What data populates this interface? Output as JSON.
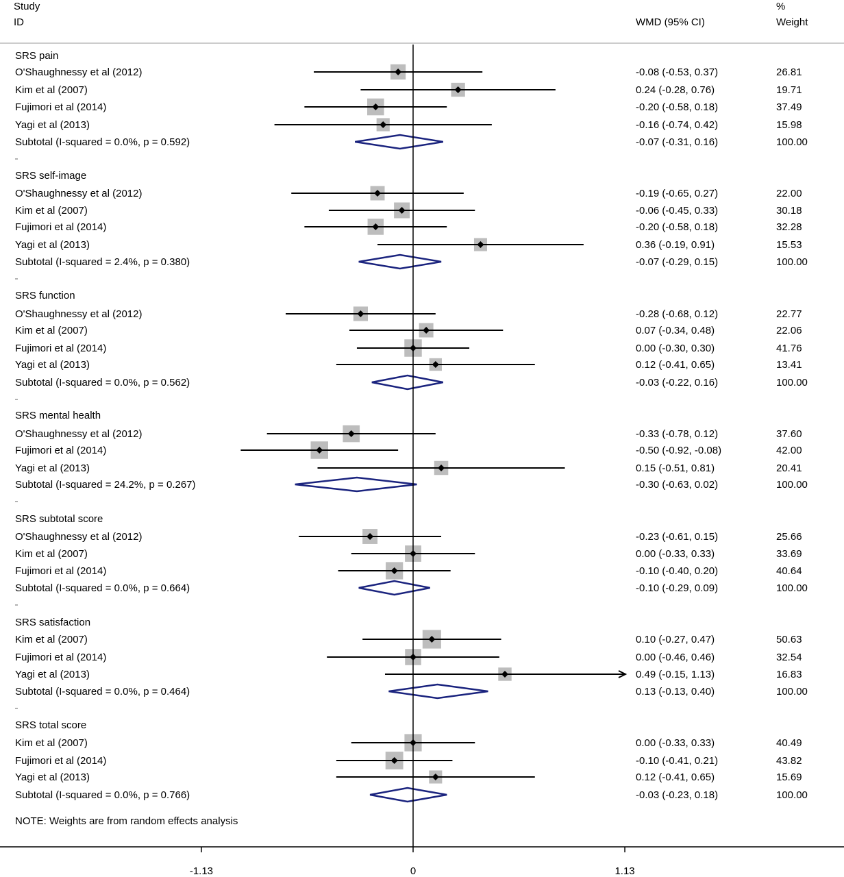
{
  "chart_data": {
    "type": "forest",
    "header": {
      "study": "Study",
      "id": "ID",
      "effect": "WMD (95% CI)",
      "percent": "%",
      "weight": "Weight"
    },
    "xaxis": {
      "ticks": [
        -1.13,
        0,
        1.13
      ],
      "tick_labels": [
        "-1.13",
        "0",
        "1.13"
      ],
      "range": [
        -2.2,
        2.27
      ]
    },
    "groups": [
      {
        "name": "SRS pain",
        "studies": [
          {
            "label": "O'Shaughnessy et al (2012)",
            "est": -0.08,
            "lo": -0.53,
            "hi": 0.37,
            "ci_text": "-0.08 (-0.53, 0.37)",
            "weight": "26.81"
          },
          {
            "label": "Kim et al (2007)",
            "est": 0.24,
            "lo": -0.28,
            "hi": 0.76,
            "ci_text": "0.24 (-0.28, 0.76)",
            "weight": "19.71"
          },
          {
            "label": "Fujimori et al (2014)",
            "est": -0.2,
            "lo": -0.58,
            "hi": 0.18,
            "ci_text": "-0.20 (-0.58, 0.18)",
            "weight": "37.49"
          },
          {
            "label": "Yagi et al (2013)",
            "est": -0.16,
            "lo": -0.74,
            "hi": 0.42,
            "ci_text": "-0.16 (-0.74, 0.42)",
            "weight": "15.98"
          }
        ],
        "subtotal": {
          "label": "Subtotal  (I-squared = 0.0%, p = 0.592)",
          "est": -0.07,
          "lo": -0.31,
          "hi": 0.16,
          "ci_text": "-0.07 (-0.31, 0.16)",
          "weight": "100.00"
        }
      },
      {
        "name": "SRS self-image",
        "studies": [
          {
            "label": "O'Shaughnessy et al (2012)",
            "est": -0.19,
            "lo": -0.65,
            "hi": 0.27,
            "ci_text": "-0.19 (-0.65, 0.27)",
            "weight": "22.00"
          },
          {
            "label": "Kim et al (2007)",
            "est": -0.06,
            "lo": -0.45,
            "hi": 0.33,
            "ci_text": "-0.06 (-0.45, 0.33)",
            "weight": "30.18"
          },
          {
            "label": "Fujimori et al (2014)",
            "est": -0.2,
            "lo": -0.58,
            "hi": 0.18,
            "ci_text": "-0.20 (-0.58, 0.18)",
            "weight": "32.28"
          },
          {
            "label": "Yagi et al (2013)",
            "est": 0.36,
            "lo": -0.19,
            "hi": 0.91,
            "ci_text": "0.36 (-0.19, 0.91)",
            "weight": "15.53"
          }
        ],
        "subtotal": {
          "label": "Subtotal  (I-squared = 2.4%, p = 0.380)",
          "est": -0.07,
          "lo": -0.29,
          "hi": 0.15,
          "ci_text": "-0.07 (-0.29, 0.15)",
          "weight": "100.00"
        }
      },
      {
        "name": "SRS function",
        "studies": [
          {
            "label": "O'Shaughnessy et al (2012)",
            "est": -0.28,
            "lo": -0.68,
            "hi": 0.12,
            "ci_text": "-0.28 (-0.68, 0.12)",
            "weight": "22.77"
          },
          {
            "label": "Kim et al (2007)",
            "est": 0.07,
            "lo": -0.34,
            "hi": 0.48,
            "ci_text": "0.07 (-0.34, 0.48)",
            "weight": "22.06"
          },
          {
            "label": "Fujimori et al (2014)",
            "est": 0.0,
            "lo": -0.3,
            "hi": 0.3,
            "ci_text": "0.00 (-0.30, 0.30)",
            "weight": "41.76"
          },
          {
            "label": "Yagi et al (2013)",
            "est": 0.12,
            "lo": -0.41,
            "hi": 0.65,
            "ci_text": "0.12 (-0.41, 0.65)",
            "weight": "13.41"
          }
        ],
        "subtotal": {
          "label": "Subtotal  (I-squared = 0.0%, p = 0.562)",
          "est": -0.03,
          "lo": -0.22,
          "hi": 0.16,
          "ci_text": "-0.03 (-0.22, 0.16)",
          "weight": "100.00"
        }
      },
      {
        "name": "SRS mental health",
        "studies": [
          {
            "label": "O'Shaughnessy et al (2012)",
            "est": -0.33,
            "lo": -0.78,
            "hi": 0.12,
            "ci_text": "-0.33 (-0.78, 0.12)",
            "weight": "37.60"
          },
          {
            "label": "Fujimori et al (2014)",
            "est": -0.5,
            "lo": -0.92,
            "hi": -0.08,
            "ci_text": "-0.50 (-0.92, -0.08)",
            "weight": "42.00"
          },
          {
            "label": "Yagi et al (2013)",
            "est": 0.15,
            "lo": -0.51,
            "hi": 0.81,
            "ci_text": "0.15 (-0.51, 0.81)",
            "weight": "20.41"
          }
        ],
        "subtotal": {
          "label": "Subtotal  (I-squared = 24.2%, p = 0.267)",
          "est": -0.3,
          "lo": -0.63,
          "hi": 0.02,
          "ci_text": "-0.30 (-0.63, 0.02)",
          "weight": "100.00"
        }
      },
      {
        "name": "SRS subtotal score",
        "studies": [
          {
            "label": "O'Shaughnessy et al (2012)",
            "est": -0.23,
            "lo": -0.61,
            "hi": 0.15,
            "ci_text": "-0.23 (-0.61, 0.15)",
            "weight": "25.66"
          },
          {
            "label": "Kim et al (2007)",
            "est": 0.0,
            "lo": -0.33,
            "hi": 0.33,
            "ci_text": "0.00 (-0.33, 0.33)",
            "weight": "33.69"
          },
          {
            "label": "Fujimori et al (2014)",
            "est": -0.1,
            "lo": -0.4,
            "hi": 0.2,
            "ci_text": "-0.10 (-0.40, 0.20)",
            "weight": "40.64"
          }
        ],
        "subtotal": {
          "label": "Subtotal  (I-squared = 0.0%, p = 0.664)",
          "est": -0.1,
          "lo": -0.29,
          "hi": 0.09,
          "ci_text": "-0.10 (-0.29, 0.09)",
          "weight": "100.00"
        }
      },
      {
        "name": "SRS satisfaction",
        "studies": [
          {
            "label": "Kim et al (2007)",
            "est": 0.1,
            "lo": -0.27,
            "hi": 0.47,
            "ci_text": "0.10 (-0.27, 0.47)",
            "weight": "50.63"
          },
          {
            "label": "Fujimori et al (2014)",
            "est": 0.0,
            "lo": -0.46,
            "hi": 0.46,
            "ci_text": "0.00 (-0.46, 0.46)",
            "weight": "32.54"
          },
          {
            "label": "Yagi et al (2013)",
            "est": 0.49,
            "lo": -0.15,
            "hi": 1.13,
            "ci_text": "0.49 (-0.15, 1.13)",
            "weight": "16.83",
            "arrow_right": true
          }
        ],
        "subtotal": {
          "label": "Subtotal  (I-squared = 0.0%, p = 0.464)",
          "est": 0.13,
          "lo": -0.13,
          "hi": 0.4,
          "ci_text": "0.13 (-0.13, 0.40)",
          "weight": "100.00"
        }
      },
      {
        "name": "SRS total score",
        "studies": [
          {
            "label": "Kim et al (2007)",
            "est": 0.0,
            "lo": -0.33,
            "hi": 0.33,
            "ci_text": "0.00 (-0.33, 0.33)",
            "weight": "40.49"
          },
          {
            "label": "Fujimori et al (2014)",
            "est": -0.1,
            "lo": -0.41,
            "hi": 0.21,
            "ci_text": "-0.10 (-0.41, 0.21)",
            "weight": "43.82"
          },
          {
            "label": "Yagi et al (2013)",
            "est": 0.12,
            "lo": -0.41,
            "hi": 0.65,
            "ci_text": "0.12 (-0.41, 0.65)",
            "weight": "15.69"
          }
        ],
        "subtotal": {
          "label": "Subtotal  (I-squared = 0.0%, p = 0.766)",
          "est": -0.03,
          "lo": -0.23,
          "hi": 0.18,
          "ci_text": "-0.03 (-0.23, 0.18)",
          "weight": "100.00"
        }
      }
    ],
    "note": "NOTE: Weights are from random effects analysis",
    "colors": {
      "diamond": "#1a237e",
      "square": "#bdbdbd",
      "line": "#000000"
    }
  }
}
